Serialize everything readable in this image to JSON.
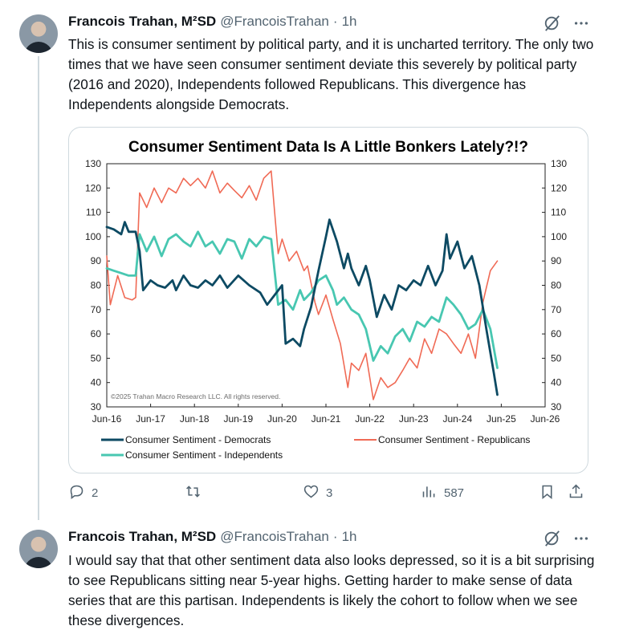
{
  "tweets": [
    {
      "name": "Francois Trahan, M²SD",
      "handle": "@FrancoisTrahan",
      "separator": "·",
      "time": "1h",
      "text": "This is consumer sentiment by political party, and it is uncharted territory. The only two times that we have seen consumer sentiment deviate this severely by political party (2016 and 2020), Independents followed Republicans. This divergence has Independents alongside Democrats.",
      "actions": {
        "replies": "2",
        "reposts": "",
        "likes": "3",
        "views": "587"
      }
    },
    {
      "name": "Francois Trahan, M²SD",
      "handle": "@FrancoisTrahan",
      "separator": "·",
      "time": "1h",
      "text": "I would say that that other sentiment data also looks depressed, so it is a bit surprising to see Republicans sitting near 5-year highs. Getting harder to make sense of data series that are this partisan. Independents is likely the cohort to follow when we see these divergences."
    }
  ],
  "icons": [
    "grok-icon",
    "more-icon",
    "reply-icon",
    "repost-icon",
    "like-icon",
    "views-icon",
    "bookmark-icon",
    "share-icon"
  ],
  "colors": {
    "democrats": "#0d4a63",
    "republicans": "#f06a55",
    "independents": "#48c7b1",
    "text": "#0f1419",
    "muted": "#536471"
  },
  "chart_data": {
    "type": "line",
    "title": "Consumer Sentiment Data Is A Little Bonkers Lately?!?",
    "copyright": "©2025 Trahan Macro Research LLC. All rights reserved.",
    "xlabel": "",
    "ylabel": "",
    "x_ticks": [
      "Jun-16",
      "Jun-17",
      "Jun-18",
      "Jun-19",
      "Jun-20",
      "Jun-21",
      "Jun-22",
      "Jun-23",
      "Jun-24",
      "Jun-25",
      "Jun-26"
    ],
    "x_range": [
      2016.42,
      2026.42
    ],
    "ylim": [
      30,
      130
    ],
    "y_ticks": [
      130,
      120,
      110,
      100,
      90,
      80,
      70,
      60,
      50,
      40,
      30
    ],
    "legend_location": "bottom",
    "series": [
      {
        "name": "Consumer Sentiment - Democrats",
        "color": "#0d4a63",
        "points": [
          [
            2016.42,
            104
          ],
          [
            2016.58,
            103
          ],
          [
            2016.75,
            101
          ],
          [
            2016.83,
            106
          ],
          [
            2016.92,
            102
          ],
          [
            2017.08,
            102
          ],
          [
            2017.17,
            94
          ],
          [
            2017.25,
            78
          ],
          [
            2017.42,
            82
          ],
          [
            2017.58,
            80
          ],
          [
            2017.75,
            79
          ],
          [
            2017.92,
            82
          ],
          [
            2018.0,
            78
          ],
          [
            2018.17,
            84
          ],
          [
            2018.33,
            80
          ],
          [
            2018.5,
            79
          ],
          [
            2018.67,
            82
          ],
          [
            2018.83,
            80
          ],
          [
            2019.0,
            84
          ],
          [
            2019.17,
            79
          ],
          [
            2019.42,
            84
          ],
          [
            2019.67,
            80
          ],
          [
            2019.92,
            77
          ],
          [
            2020.08,
            72
          ],
          [
            2020.25,
            76
          ],
          [
            2020.42,
            80
          ],
          [
            2020.5,
            56
          ],
          [
            2020.67,
            58
          ],
          [
            2020.83,
            55
          ],
          [
            2020.92,
            62
          ],
          [
            2021.08,
            71
          ],
          [
            2021.25,
            86
          ],
          [
            2021.42,
            100
          ],
          [
            2021.5,
            107
          ],
          [
            2021.67,
            98
          ],
          [
            2021.83,
            87
          ],
          [
            2021.92,
            93
          ],
          [
            2022.0,
            87
          ],
          [
            2022.17,
            80
          ],
          [
            2022.33,
            88
          ],
          [
            2022.42,
            82
          ],
          [
            2022.58,
            67
          ],
          [
            2022.75,
            76
          ],
          [
            2022.92,
            70
          ],
          [
            2023.08,
            80
          ],
          [
            2023.25,
            78
          ],
          [
            2023.42,
            82
          ],
          [
            2023.58,
            80
          ],
          [
            2023.75,
            88
          ],
          [
            2023.92,
            80
          ],
          [
            2024.08,
            86
          ],
          [
            2024.17,
            101
          ],
          [
            2024.25,
            91
          ],
          [
            2024.42,
            98
          ],
          [
            2024.58,
            87
          ],
          [
            2024.75,
            92
          ],
          [
            2024.92,
            80
          ],
          [
            2025.08,
            62
          ],
          [
            2025.25,
            44
          ],
          [
            2025.33,
            35
          ]
        ]
      },
      {
        "name": "Consumer Sentiment - Republicans",
        "color": "#f06a55",
        "points": [
          [
            2016.42,
            92
          ],
          [
            2016.5,
            72
          ],
          [
            2016.67,
            84
          ],
          [
            2016.83,
            75
          ],
          [
            2017.0,
            74
          ],
          [
            2017.08,
            75
          ],
          [
            2017.17,
            118
          ],
          [
            2017.33,
            112
          ],
          [
            2017.5,
            120
          ],
          [
            2017.67,
            114
          ],
          [
            2017.83,
            120
          ],
          [
            2018.0,
            118
          ],
          [
            2018.17,
            124
          ],
          [
            2018.33,
            121
          ],
          [
            2018.5,
            124
          ],
          [
            2018.67,
            120
          ],
          [
            2018.83,
            127
          ],
          [
            2019.0,
            118
          ],
          [
            2019.17,
            122
          ],
          [
            2019.33,
            119
          ],
          [
            2019.5,
            116
          ],
          [
            2019.67,
            121
          ],
          [
            2019.83,
            115
          ],
          [
            2020.0,
            124
          ],
          [
            2020.17,
            127
          ],
          [
            2020.25,
            110
          ],
          [
            2020.33,
            93
          ],
          [
            2020.42,
            99
          ],
          [
            2020.58,
            90
          ],
          [
            2020.75,
            94
          ],
          [
            2020.92,
            86
          ],
          [
            2021.0,
            88
          ],
          [
            2021.17,
            73
          ],
          [
            2021.25,
            68
          ],
          [
            2021.42,
            76
          ],
          [
            2021.58,
            66
          ],
          [
            2021.75,
            56
          ],
          [
            2021.92,
            38
          ],
          [
            2022.0,
            48
          ],
          [
            2022.17,
            45
          ],
          [
            2022.33,
            52
          ],
          [
            2022.5,
            33
          ],
          [
            2022.67,
            42
          ],
          [
            2022.83,
            38
          ],
          [
            2023.0,
            40
          ],
          [
            2023.17,
            45
          ],
          [
            2023.33,
            50
          ],
          [
            2023.5,
            46
          ],
          [
            2023.67,
            58
          ],
          [
            2023.83,
            52
          ],
          [
            2024.0,
            62
          ],
          [
            2024.17,
            60
          ],
          [
            2024.33,
            56
          ],
          [
            2024.5,
            52
          ],
          [
            2024.67,
            60
          ],
          [
            2024.83,
            50
          ],
          [
            2025.0,
            73
          ],
          [
            2025.17,
            86
          ],
          [
            2025.33,
            90
          ]
        ]
      },
      {
        "name": "Consumer Sentiment - Independents",
        "color": "#48c7b1",
        "points": [
          [
            2016.42,
            87
          ],
          [
            2016.58,
            86
          ],
          [
            2016.75,
            85
          ],
          [
            2016.92,
            84
          ],
          [
            2017.08,
            84
          ],
          [
            2017.17,
            101
          ],
          [
            2017.33,
            94
          ],
          [
            2017.5,
            100
          ],
          [
            2017.67,
            92
          ],
          [
            2017.83,
            99
          ],
          [
            2018.0,
            101
          ],
          [
            2018.17,
            98
          ],
          [
            2018.33,
            96
          ],
          [
            2018.5,
            102
          ],
          [
            2018.67,
            96
          ],
          [
            2018.83,
            98
          ],
          [
            2019.0,
            93
          ],
          [
            2019.17,
            99
          ],
          [
            2019.33,
            98
          ],
          [
            2019.5,
            91
          ],
          [
            2019.67,
            99
          ],
          [
            2019.83,
            96
          ],
          [
            2020.0,
            100
          ],
          [
            2020.17,
            99
          ],
          [
            2020.33,
            72
          ],
          [
            2020.5,
            74
          ],
          [
            2020.67,
            70
          ],
          [
            2020.83,
            78
          ],
          [
            2020.92,
            74
          ],
          [
            2021.08,
            77
          ],
          [
            2021.25,
            82
          ],
          [
            2021.42,
            84
          ],
          [
            2021.58,
            78
          ],
          [
            2021.67,
            72
          ],
          [
            2021.83,
            75
          ],
          [
            2022.0,
            70
          ],
          [
            2022.17,
            68
          ],
          [
            2022.33,
            62
          ],
          [
            2022.5,
            49
          ],
          [
            2022.67,
            55
          ],
          [
            2022.83,
            52
          ],
          [
            2023.0,
            59
          ],
          [
            2023.17,
            62
          ],
          [
            2023.33,
            57
          ],
          [
            2023.5,
            65
          ],
          [
            2023.67,
            63
          ],
          [
            2023.83,
            67
          ],
          [
            2024.0,
            65
          ],
          [
            2024.17,
            75
          ],
          [
            2024.33,
            72
          ],
          [
            2024.5,
            68
          ],
          [
            2024.67,
            62
          ],
          [
            2024.83,
            64
          ],
          [
            2025.0,
            70
          ],
          [
            2025.17,
            62
          ],
          [
            2025.33,
            46
          ]
        ]
      }
    ]
  }
}
